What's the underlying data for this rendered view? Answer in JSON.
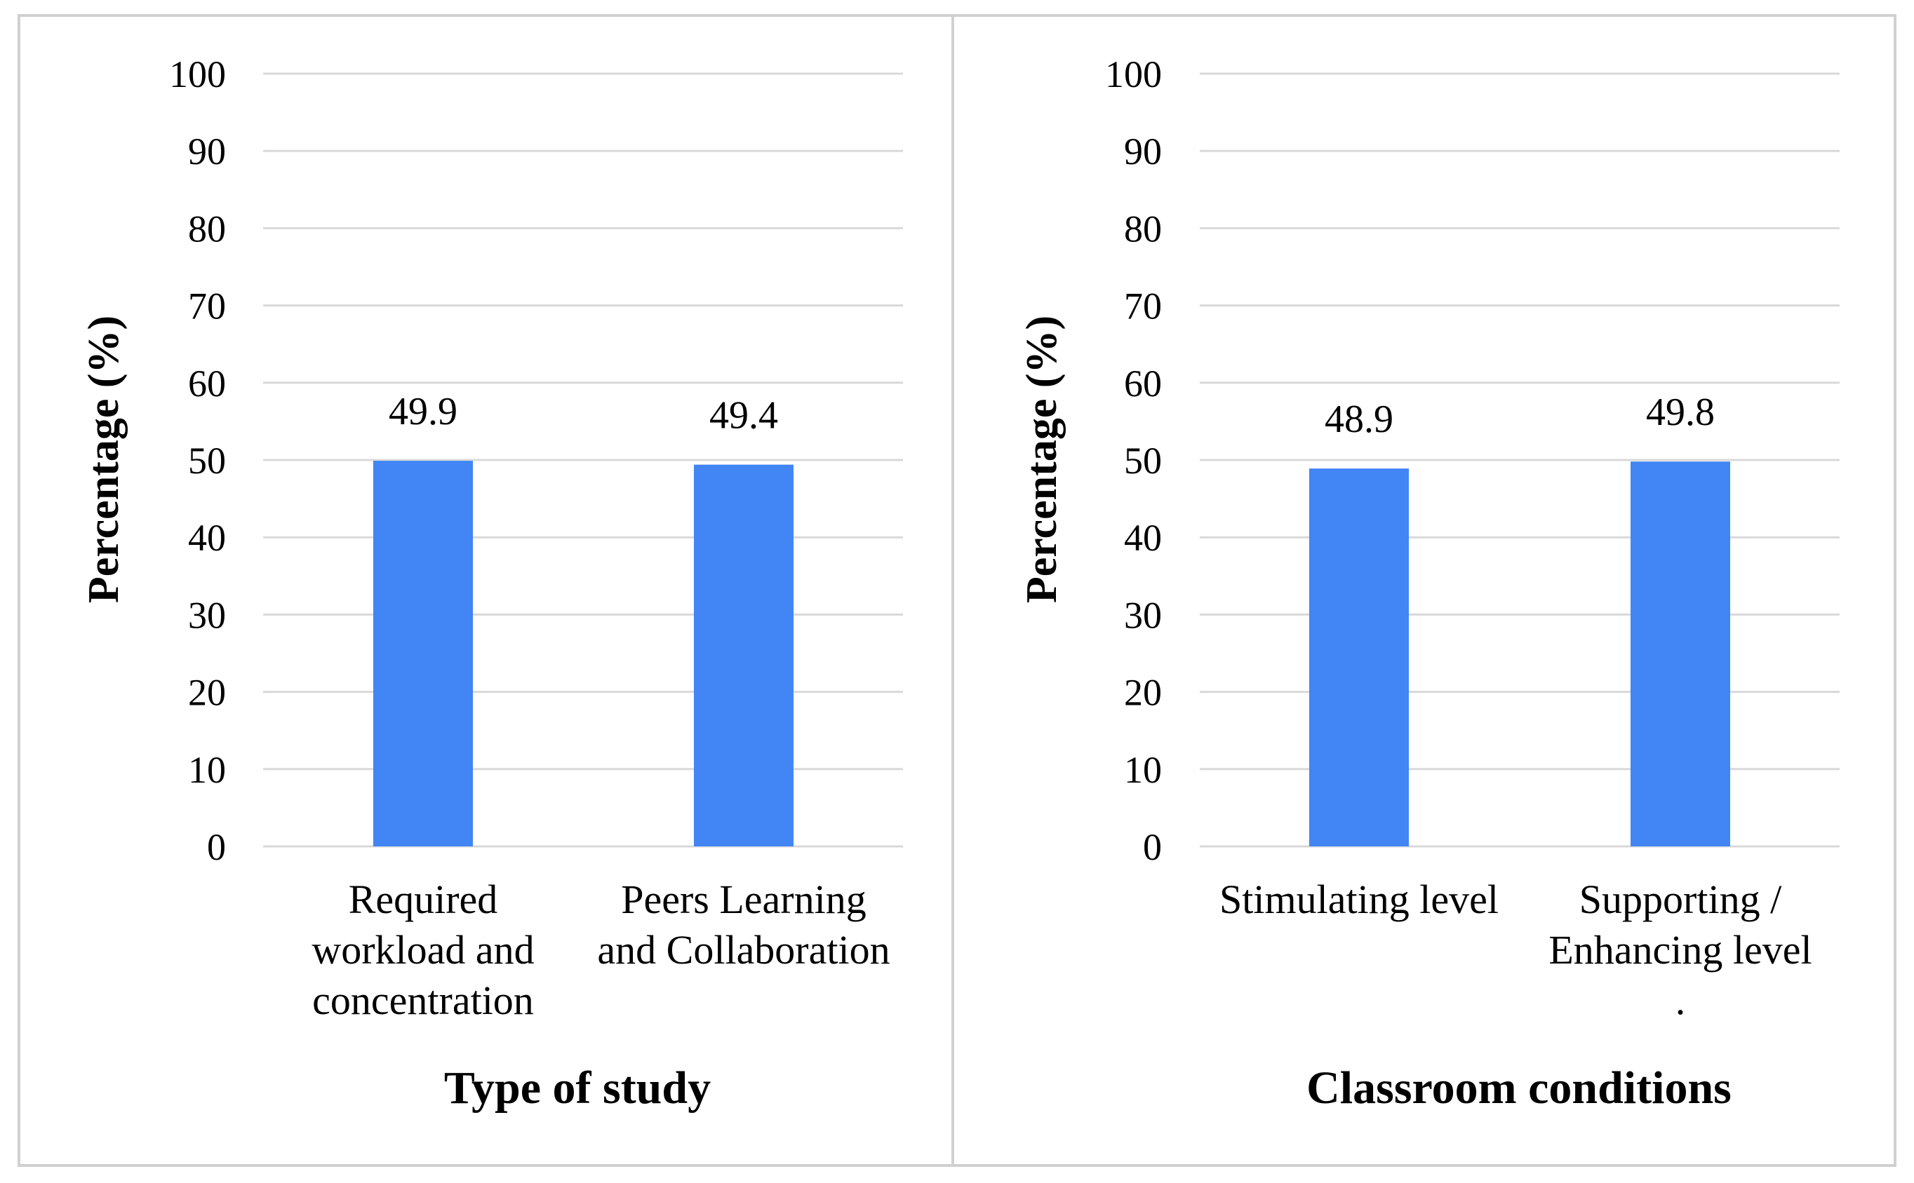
{
  "chart_data": [
    {
      "type": "bar",
      "title": "",
      "xlabel": "Type of study",
      "ylabel": "Percentage (%)",
      "ylim": [
        0,
        100
      ],
      "yticks": [
        0,
        10,
        20,
        30,
        40,
        50,
        60,
        70,
        80,
        90,
        100
      ],
      "grid": true,
      "categories": [
        [
          "Required",
          "workload and",
          "concentration"
        ],
        [
          "Peers Learning",
          "and Collaboration"
        ]
      ],
      "values": [
        49.9,
        49.4
      ],
      "data_labels": [
        "49.9",
        "49.4"
      ],
      "bar_color": "#4285f4"
    },
    {
      "type": "bar",
      "title": "",
      "xlabel": "Classroom conditions",
      "ylabel": "Percentage (%)",
      "ylim": [
        0,
        100
      ],
      "yticks": [
        0,
        10,
        20,
        30,
        40,
        50,
        60,
        70,
        80,
        90,
        100
      ],
      "grid": true,
      "categories": [
        [
          "Stimulating level"
        ],
        [
          "Supporting /",
          "Enhancing level",
          "."
        ]
      ],
      "values": [
        48.9,
        49.8
      ],
      "data_labels": [
        "48.9",
        "49.8"
      ],
      "bar_color": "#4285f4"
    }
  ]
}
